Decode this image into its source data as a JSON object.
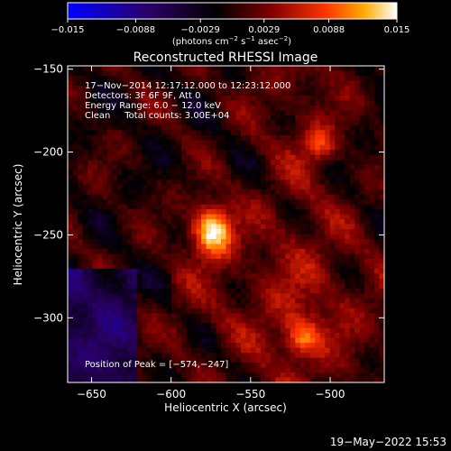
{
  "chart_data": {
    "type": "heatmap",
    "title": "Reconstructed RHESSI Image",
    "xlabel": "Heliocentric X (arcsec)",
    "ylabel": "Heliocentric Y (arcsec)",
    "xlim": [
      -665,
      -466
    ],
    "ylim": [
      -339,
      -148
    ],
    "xticks": [
      -650,
      -600,
      -550,
      -500
    ],
    "xtick_labels": [
      "−650",
      "−600",
      "−550",
      "−500"
    ],
    "yticks": [
      -150,
      -200,
      -250,
      -300
    ],
    "ytick_labels": [
      "−150",
      "−200",
      "−250",
      "−300"
    ],
    "colorbar": {
      "range": [
        -0.015,
        0.015
      ],
      "ticks": [
        -0.015,
        -0.0088,
        -0.0029,
        0.0029,
        0.0088,
        0.015
      ],
      "tick_labels": [
        "−0.015",
        "−0.0088",
        "−0.0029",
        "0.0029",
        "0.0088",
        "0.015"
      ],
      "unit_main": "(photons cm",
      "unit_exp1": "−2",
      "unit_mid1": " s",
      "unit_exp2": "−1",
      "unit_mid2": " asec",
      "unit_exp3": "−2",
      "unit_end": ")",
      "colors": [
        "#0000ff",
        "#2a0066",
        "#000000",
        "#800000",
        "#ff3300",
        "#ffaa00",
        "#ffffff"
      ]
    },
    "annotations": [
      "17−Nov−2014 12:17:12.000 to 12:23:12.000",
      "Detectors: 3F 6F 9F, Att 0",
      "Energy Range: 6.0 − 12.0 keV",
      "Clean     Total counts: 3.00E+04"
    ],
    "peak_label": "Position of Peak = [−574,−247]",
    "sources": [
      {
        "x": -574,
        "y": -247,
        "sx": 9,
        "sy": 11,
        "amp": 0.015
      },
      {
        "x": -518,
        "y": -312,
        "sx": 8,
        "sy": 8,
        "amp": 0.008
      },
      {
        "x": -507,
        "y": -195,
        "sx": 7,
        "sy": 7,
        "amp": 0.0065
      }
    ]
  },
  "footer": {
    "date": "19−May−2022 15:53"
  }
}
